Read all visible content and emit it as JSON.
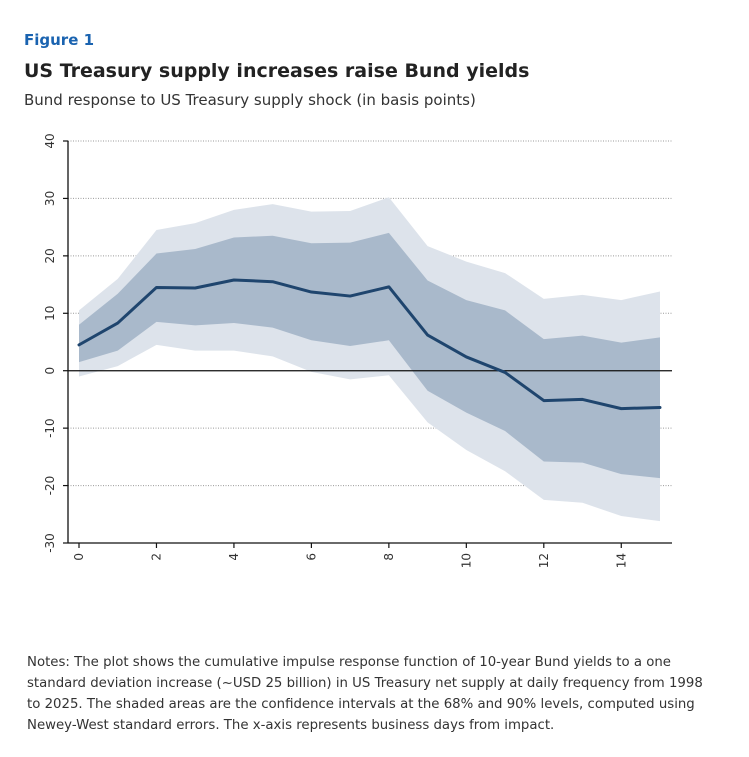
{
  "figure_label": "Figure 1",
  "title": "US Treasury supply increases raise Bund yields",
  "subtitle": "Bund response to US Treasury supply shock (in basis points)",
  "notes": "Notes: The plot shows the cumulative impulse response function of 10-year Bund yields to a one standard deviation increase (~USD 25 billion) in US Treasury net supply at daily frequency from 1998 to 2025. The shaded areas are the confidence intervals at the 68% and 90% levels, computed using Newey-West standard errors. The x-axis represents business days from impact.",
  "colors": {
    "line": "#1f456e",
    "band68": "#a9b9cb",
    "band90": "#dde3eb",
    "label_accent": "#1a63b0"
  },
  "chart_data": {
    "type": "line",
    "x": [
      0,
      1,
      2,
      3,
      4,
      5,
      6,
      7,
      8,
      9,
      10,
      11,
      12,
      13,
      14,
      15
    ],
    "series": [
      {
        "values": [
          4.5,
          8.3,
          14.5,
          14.4,
          15.8,
          15.5,
          13.7,
          13.0,
          14.6,
          6.2,
          2.4,
          -0.3,
          -5.2,
          -5.0,
          -6.6,
          -6.4
        ]
      }
    ],
    "bands": [
      {
        "level": "90%",
        "upper": [
          10.5,
          16.0,
          24.5,
          25.7,
          28.0,
          29.0,
          27.7,
          27.8,
          30.2,
          21.7,
          19.0,
          17.0,
          12.5,
          13.2,
          12.3,
          13.8
        ],
        "lower": [
          -1.0,
          0.8,
          4.5,
          3.5,
          3.5,
          2.5,
          -0.2,
          -1.5,
          -0.8,
          -9.0,
          -13.8,
          -17.5,
          -22.5,
          -23.0,
          -25.3,
          -26.2
        ]
      },
      {
        "level": "68%",
        "upper": [
          8.0,
          13.4,
          20.4,
          21.2,
          23.2,
          23.5,
          22.2,
          22.3,
          24.0,
          15.7,
          12.3,
          10.5,
          5.5,
          6.1,
          4.9,
          5.8
        ],
        "lower": [
          1.5,
          3.5,
          8.5,
          7.9,
          8.3,
          7.5,
          5.3,
          4.3,
          5.3,
          -3.5,
          -7.3,
          -10.5,
          -15.8,
          -16.0,
          -18.0,
          -18.7
        ]
      }
    ],
    "xlim": [
      0,
      15
    ],
    "ylim": [
      -30,
      40
    ],
    "xticks": [
      0,
      2,
      4,
      6,
      8,
      10,
      12,
      14
    ],
    "yticks": [
      -30,
      -20,
      -10,
      0,
      10,
      20,
      30,
      40
    ],
    "grid": true,
    "zero_line": true
  }
}
